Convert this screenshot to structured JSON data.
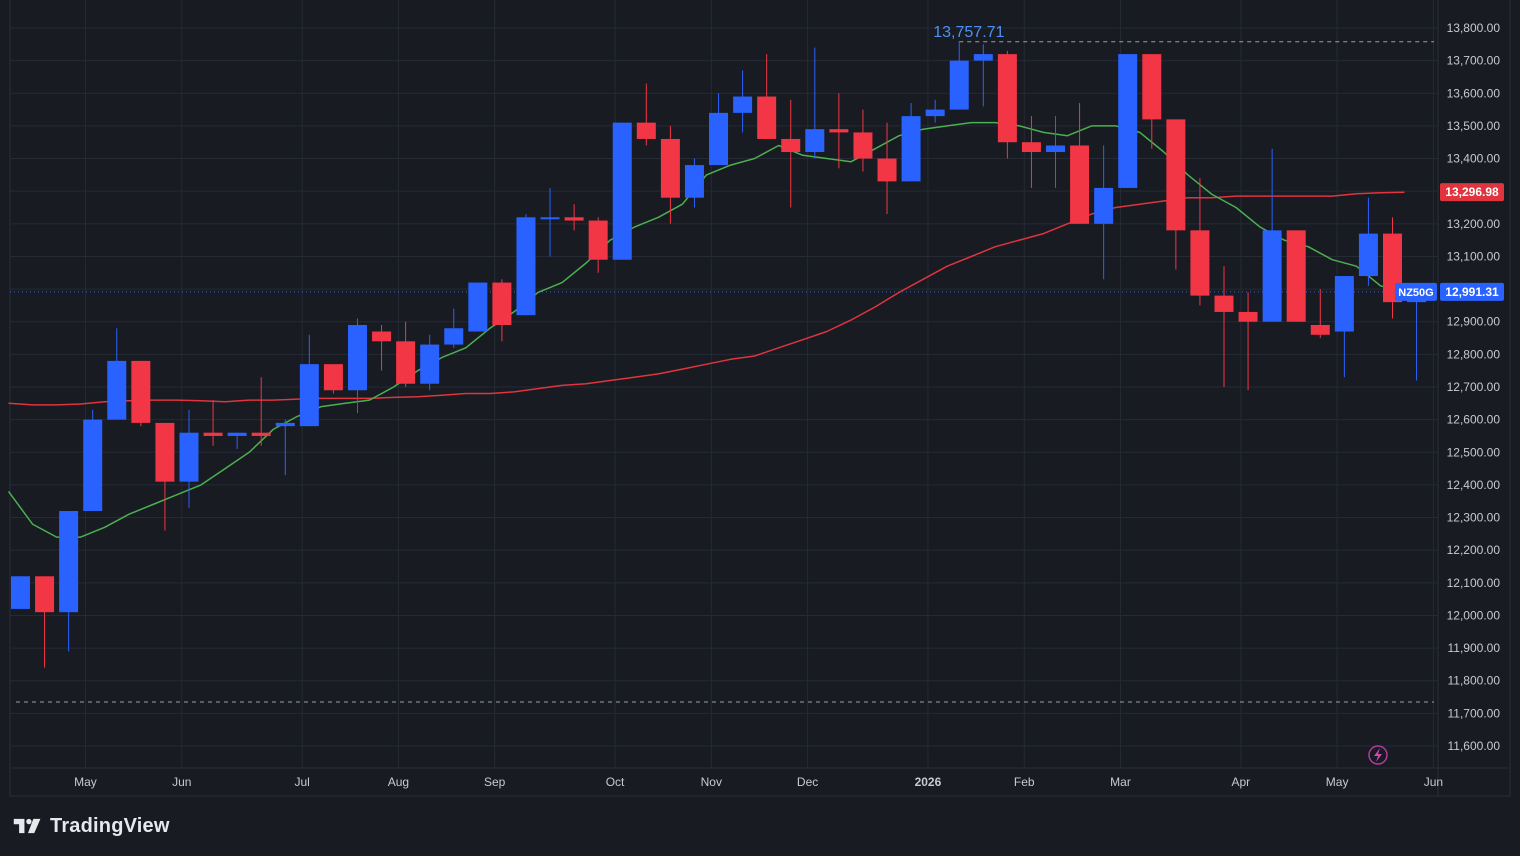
{
  "chart_data": {
    "type": "candlestick",
    "symbol": "NZ50G",
    "last_price": "12,991.31",
    "last_price_value": 12991.31,
    "ma_long_label": "13,296.98",
    "ma_long_value": 13296.98,
    "high_label": "13,757.71",
    "high_value": 13757.71,
    "low_dashed_value": 11735,
    "ylim": [
      11540,
      13870
    ],
    "y_ticks": [
      "13,800.00",
      "13,700.00",
      "13,600.00",
      "13,500.00",
      "13,400.00",
      "13,300.00",
      "13,200.00",
      "13,100.00",
      "13,000.00",
      "12,900.00",
      "12,800.00",
      "12,700.00",
      "12,600.00",
      "12,500.00",
      "12,400.00",
      "12,300.00",
      "12,200.00",
      "12,100.00",
      "12,000.00",
      "11,900.00",
      "11,800.00",
      "11,700.00",
      "11,600.00"
    ],
    "x_labels": [
      {
        "label": "May",
        "week": 2.7
      },
      {
        "label": "Jun",
        "week": 6.7
      },
      {
        "label": "Jul",
        "week": 11.7
      },
      {
        "label": "Aug",
        "week": 15.7
      },
      {
        "label": "Sep",
        "week": 19.7
      },
      {
        "label": "Oct",
        "week": 24.7
      },
      {
        "label": "Nov",
        "week": 28.7
      },
      {
        "label": "Dec",
        "week": 32.7
      },
      {
        "label": "2026",
        "week": 37.7
      },
      {
        "label": "Feb",
        "week": 41.7
      },
      {
        "label": "Mar",
        "week": 45.7
      },
      {
        "label": "Apr",
        "week": 50.7
      },
      {
        "label": "May",
        "week": 54.7
      },
      {
        "label": "Jun",
        "week": 58.7
      }
    ],
    "ohlc": [
      [
        12020,
        12120,
        12020,
        12120
      ],
      [
        12120,
        12120,
        11840,
        12010
      ],
      [
        12010,
        12320,
        11890,
        12320
      ],
      [
        12320,
        12630,
        12320,
        12600
      ],
      [
        12600,
        12880,
        12600,
        12780
      ],
      [
        12780,
        12780,
        12580,
        12590
      ],
      [
        12590,
        12590,
        12260,
        12410
      ],
      [
        12410,
        12630,
        12330,
        12560
      ],
      [
        12560,
        12660,
        12520,
        12550
      ],
      [
        12550,
        12560,
        12510,
        12560
      ],
      [
        12560,
        12730,
        12520,
        12550
      ],
      [
        12580,
        12600,
        12430,
        12590
      ],
      [
        12580,
        12860,
        12580,
        12770
      ],
      [
        12770,
        12770,
        12680,
        12690
      ],
      [
        12690,
        12910,
        12620,
        12890
      ],
      [
        12870,
        12890,
        12750,
        12840
      ],
      [
        12840,
        12900,
        12700,
        12710
      ],
      [
        12710,
        12860,
        12690,
        12830
      ],
      [
        12830,
        12940,
        12820,
        12880
      ],
      [
        12870,
        13000,
        12870,
        13020
      ],
      [
        13020,
        13030,
        12840,
        12890
      ],
      [
        12920,
        13230,
        12920,
        13220
      ],
      [
        13220,
        13310,
        13100,
        13220
      ],
      [
        13220,
        13260,
        13180,
        13210
      ],
      [
        13210,
        13220,
        13050,
        13090
      ],
      [
        13090,
        13510,
        13090,
        13510
      ],
      [
        13510,
        13630,
        13440,
        13460
      ],
      [
        13460,
        13500,
        13200,
        13280
      ],
      [
        13280,
        13400,
        13250,
        13380
      ],
      [
        13380,
        13600,
        13380,
        13540
      ],
      [
        13540,
        13670,
        13480,
        13590
      ],
      [
        13590,
        13720,
        13460,
        13460
      ],
      [
        13460,
        13580,
        13250,
        13420
      ],
      [
        13420,
        13740,
        13400,
        13490
      ],
      [
        13490,
        13600,
        13370,
        13480
      ],
      [
        13480,
        13550,
        13360,
        13400
      ],
      [
        13400,
        13510,
        13230,
        13330
      ],
      [
        13330,
        13570,
        13330,
        13530
      ],
      [
        13530,
        13580,
        13510,
        13550
      ],
      [
        13550,
        13760,
        13550,
        13700
      ],
      [
        13700,
        13750,
        13560,
        13720
      ],
      [
        13720,
        13730,
        13400,
        13450
      ],
      [
        13450,
        13530,
        13310,
        13420
      ],
      [
        13420,
        13530,
        13310,
        13440
      ],
      [
        13440,
        13570,
        13200,
        13200
      ],
      [
        13200,
        13440,
        13030,
        13310
      ],
      [
        13310,
        13720,
        13310,
        13720
      ],
      [
        13720,
        13720,
        13430,
        13520
      ],
      [
        13520,
        13520,
        13060,
        13180
      ],
      [
        13180,
        13340,
        12950,
        12980
      ],
      [
        12980,
        13070,
        12700,
        12930
      ],
      [
        12930,
        12990,
        12690,
        12900
      ],
      [
        12900,
        13430,
        12900,
        13180
      ],
      [
        13180,
        13180,
        12900,
        12900
      ],
      [
        12890,
        13000,
        12850,
        12860
      ],
      [
        12870,
        13040,
        12730,
        13040
      ],
      [
        13040,
        13280,
        13010,
        13170
      ],
      [
        13170,
        13220,
        12910,
        12960
      ],
      [
        12960,
        13000,
        12720,
        12990
      ]
    ],
    "ma_short": [
      12380,
      12280,
      12240,
      12240,
      12270,
      12310,
      12340,
      12370,
      12400,
      12450,
      12500,
      12570,
      12610,
      12640,
      12650,
      12660,
      12700,
      12750,
      12790,
      12820,
      12880,
      12930,
      12990,
      13020,
      13080,
      13150,
      13190,
      13220,
      13260,
      13350,
      13380,
      13400,
      13440,
      13410,
      13400,
      13390,
      13430,
      13470,
      13490,
      13500,
      13510,
      13510,
      13500,
      13480,
      13470,
      13500,
      13500,
      13480,
      13420,
      13350,
      13290,
      13250,
      13190,
      13150,
      13130,
      13090,
      13070,
      13010,
      12990
    ],
    "ma_long": [
      12650,
      12645,
      12645,
      12648,
      12655,
      12658,
      12660,
      12660,
      12658,
      12655,
      12660,
      12660,
      12663,
      12665,
      12665,
      12665,
      12668,
      12670,
      12675,
      12680,
      12680,
      12685,
      12695,
      12705,
      12710,
      12720,
      12730,
      12740,
      12755,
      12770,
      12785,
      12795,
      12820,
      12845,
      12870,
      12905,
      12945,
      12990,
      13030,
      13070,
      13100,
      13130,
      13150,
      13170,
      13200,
      13230,
      13250,
      13260,
      13270,
      13280,
      13280,
      13285,
      13285,
      13285,
      13285,
      13285,
      13292,
      13295,
      13297
    ]
  },
  "colors": {
    "up": "#2962ff",
    "down": "#f23645",
    "ma_short": "#4caf50",
    "ma_long": "#e0343e",
    "background": "#181b22",
    "grid": "#252a35",
    "axis_text": "#c7cad1",
    "high_label": "#4f8ff0"
  },
  "icons": {
    "flash": "lightning-bolt-icon",
    "logo": "tradingview-logo-icon"
  },
  "brand": {
    "name": "TradingView"
  }
}
